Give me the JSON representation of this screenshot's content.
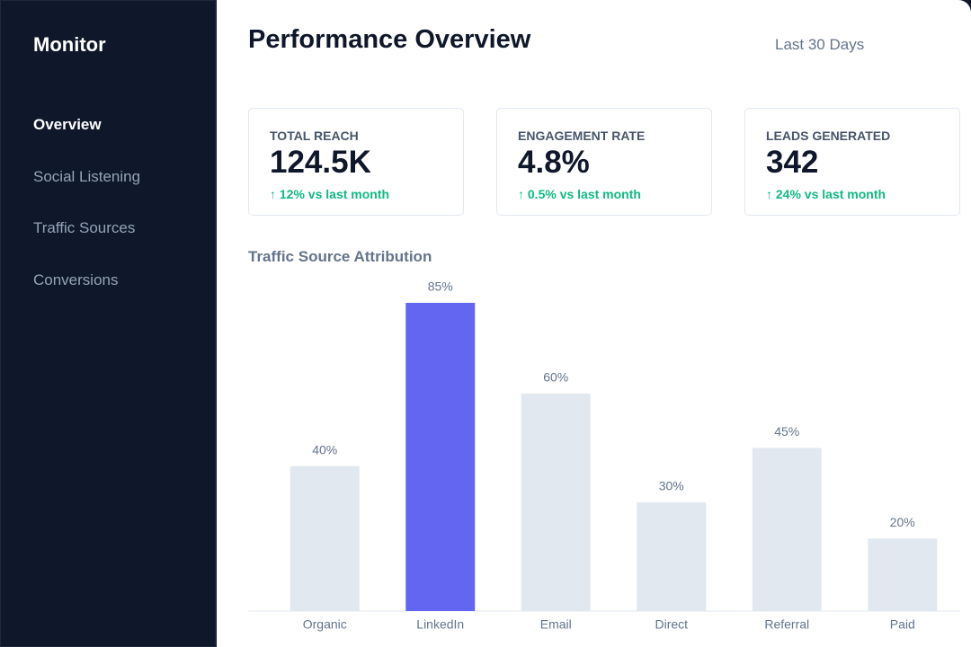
{
  "sidebar": {
    "brand": "Monitor",
    "nav": [
      "Overview",
      "Social Listening",
      "Traffic Sources",
      "Conversions"
    ],
    "active": 0
  },
  "header": {
    "title": "Performance Overview",
    "range": "Last 30 Days"
  },
  "cards": [
    {
      "label": "TOTAL REACH",
      "value": "124.5K",
      "change": "↑ 12% vs last month"
    },
    {
      "label": "ENGAGEMENT RATE",
      "value": "4.8%",
      "change": "↑ 0.5% vs last month"
    },
    {
      "label": "LEADS GENERATED",
      "value": "342",
      "change": "↑ 24% vs last month"
    }
  ],
  "chart_data": {
    "type": "bar",
    "title": "Traffic Source Attribution",
    "categories": [
      "Organic",
      "LinkedIn",
      "Email",
      "Direct",
      "Referral",
      "Paid"
    ],
    "values": [
      40,
      85,
      60,
      30,
      45,
      20
    ],
    "value_labels": [
      "40%",
      "85%",
      "60%",
      "30%",
      "45%",
      "20%"
    ],
    "colors": [
      "#e2e8f0",
      "#6366f1",
      "#e2e8f0",
      "#e2e8f0",
      "#e2e8f0",
      "#e2e8f0"
    ]
  }
}
